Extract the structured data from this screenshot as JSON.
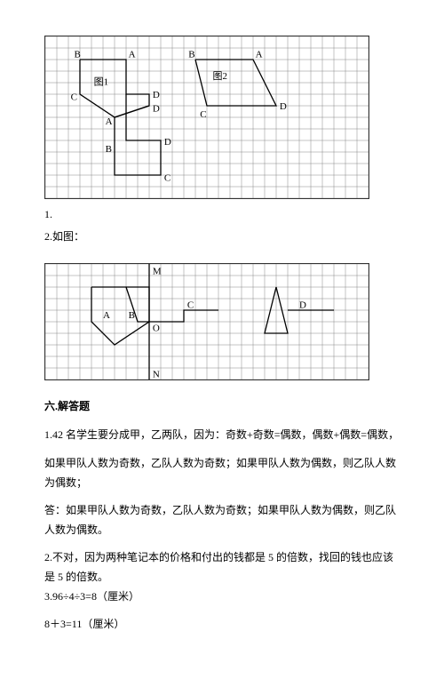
{
  "grid": {
    "cell": 13,
    "cols1": 28,
    "rows1": 14,
    "cols2": 28,
    "rows2": 10,
    "stroke": "#888888",
    "shape_stroke": "#000000",
    "label_font": "11",
    "label_family": "serif"
  },
  "fig1": {
    "labels": {
      "B1": "B",
      "A1": "A",
      "tu1": "图1",
      "D1": "D",
      "C1": "C",
      "A2": "A",
      "B2": "B",
      "D2": "D",
      "C2": "C",
      "B3": "B",
      "A3": "A",
      "tu2": "图2",
      "D3": "D",
      "C3": "C"
    }
  },
  "fig2": {
    "labels": {
      "M": "M",
      "N": "N",
      "A": "A",
      "B": "B",
      "O": "O",
      "C": "C",
      "D": "D"
    }
  },
  "text": {
    "item1": "1.",
    "item2": "2.如图：",
    "section6": "六.解答题",
    "p1": "1.42 名学生要分成甲，乙两队，因为：奇数+奇数=偶数，偶数+偶数=偶数，",
    "p2": "如果甲队人数为奇数，乙队人数为奇数；如果甲队人数为偶数，则乙队人数为偶数；",
    "p3": "答：如果甲队人数为奇数，乙队人数为奇数；如果甲队人数为偶数，则乙队人数为偶数。",
    "p4a": "2.不对，因为两种笔记本的价格和付出的钱都是 5 的倍数，找回的钱也应该是 5 的倍数。",
    "p4b": "3.96÷4÷3=8（厘米）",
    "p5": "8＋3=11（厘米）"
  }
}
